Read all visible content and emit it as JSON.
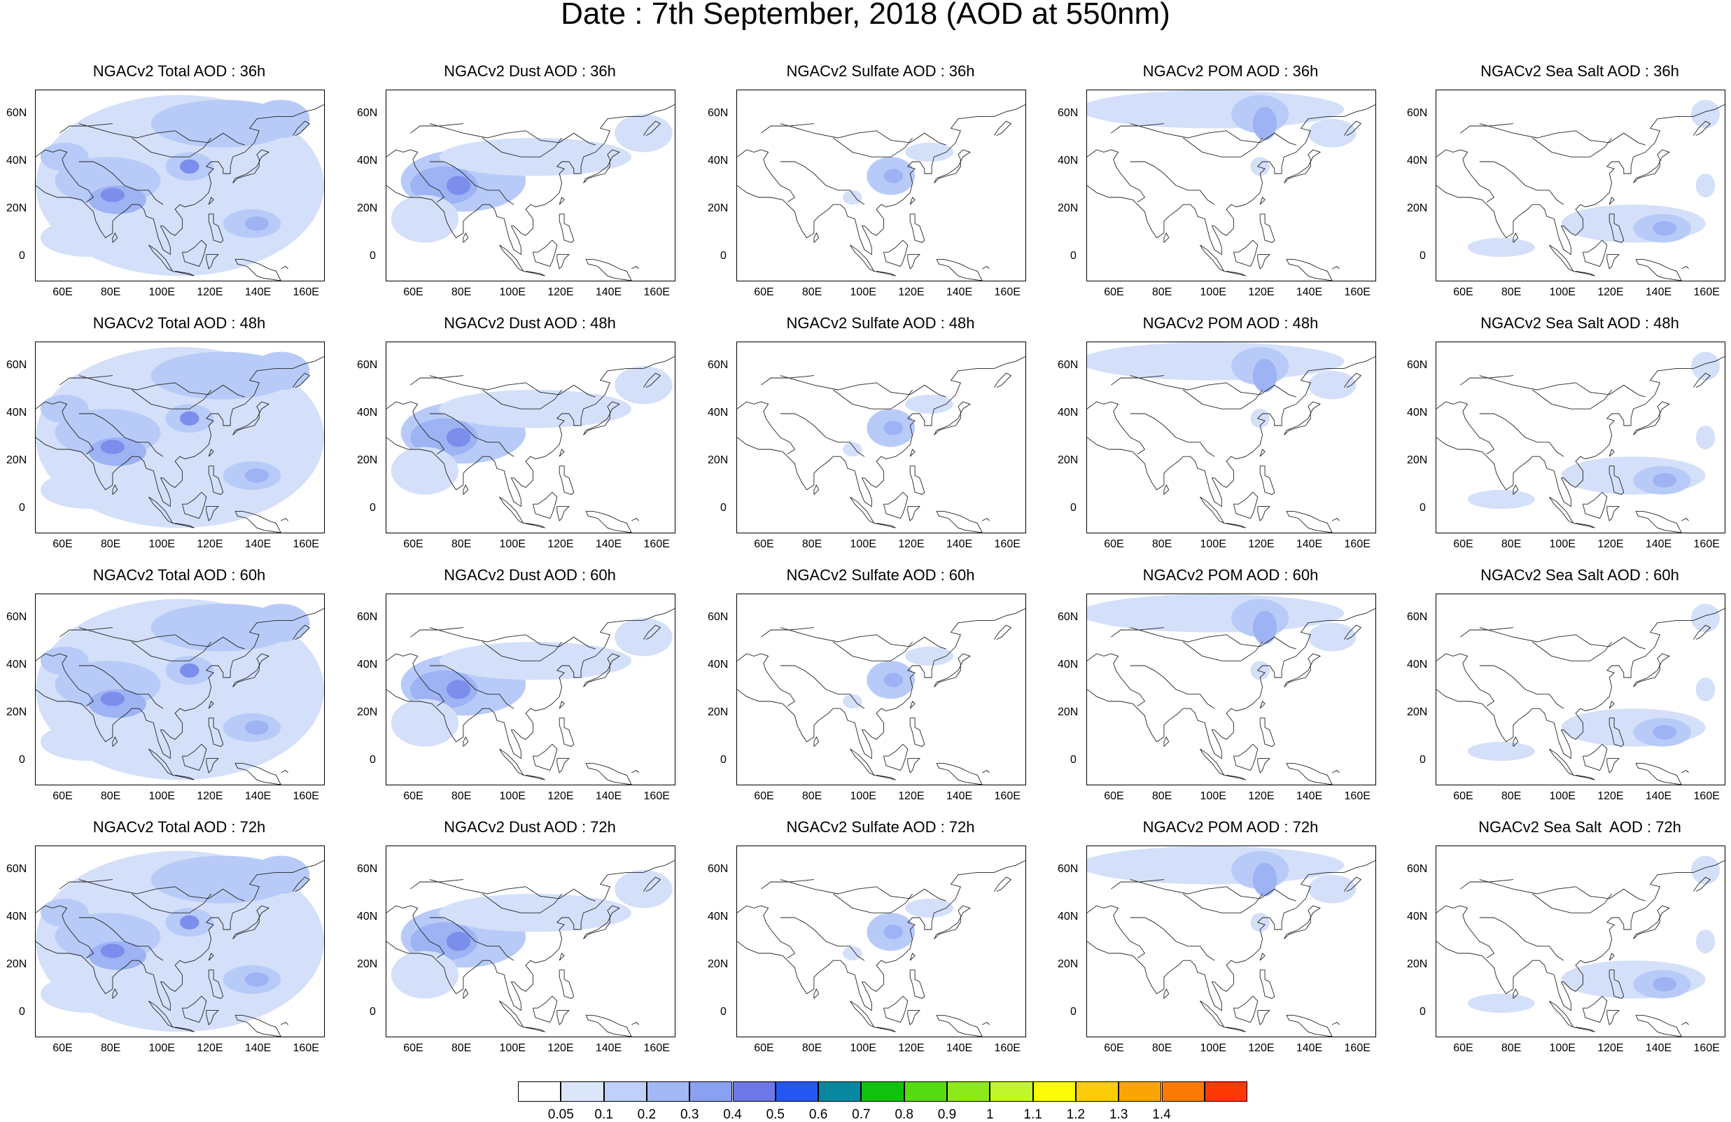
{
  "title": "Date : 7th September, 2018 (AOD at 550nm)",
  "axes": {
    "x_tick_labels": [
      "60E",
      "80E",
      "100E",
      "120E",
      "140E",
      "160E"
    ],
    "y_tick_labels": [
      "60N",
      "40N",
      "20N",
      "0"
    ],
    "lon_range": [
      48,
      168
    ],
    "lat_range": [
      -10,
      70
    ]
  },
  "panels": [
    [
      {
        "title": "NGACv2 Total AOD : 36h",
        "species": "total"
      },
      {
        "title": "NGACv2 Dust AOD : 36h",
        "species": "dust"
      },
      {
        "title": "NGACv2 Sulfate AOD : 36h",
        "species": "sulfate"
      },
      {
        "title": "NGACv2 POM AOD : 36h",
        "species": "pom"
      },
      {
        "title": "NGACv2 Sea Salt AOD : 36h",
        "species": "seasalt"
      }
    ],
    [
      {
        "title": "NGACv2 Total AOD : 48h",
        "species": "total"
      },
      {
        "title": "NGACv2 Dust AOD : 48h",
        "species": "dust"
      },
      {
        "title": "NGACv2 Sulfate AOD : 48h",
        "species": "sulfate"
      },
      {
        "title": "NGACv2 POM AOD : 48h",
        "species": "pom"
      },
      {
        "title": "NGACv2 Sea Salt AOD : 48h",
        "species": "seasalt"
      }
    ],
    [
      {
        "title": "NGACv2 Total AOD : 60h",
        "species": "total"
      },
      {
        "title": "NGACv2 Dust AOD : 60h",
        "species": "dust"
      },
      {
        "title": "NGACv2 Sulfate AOD : 60h",
        "species": "sulfate"
      },
      {
        "title": "NGACv2 POM AOD : 60h",
        "species": "pom"
      },
      {
        "title": "NGACv2 Sea Salt AOD : 60h",
        "species": "seasalt"
      }
    ],
    [
      {
        "title": "NGACv2 Total AOD : 72h",
        "species": "total"
      },
      {
        "title": "NGACv2 Dust AOD : 72h",
        "species": "dust"
      },
      {
        "title": "NGACv2 Sulfate AOD : 72h",
        "species": "sulfate"
      },
      {
        "title": "NGACv2 POM AOD : 72h",
        "species": "pom"
      },
      {
        "title": "NGACv2 Sea Salt  AOD : 72h",
        "species": "seasalt"
      }
    ]
  ],
  "colorbar": {
    "labels": [
      "0.05",
      "0.1",
      "0.2",
      "0.3",
      "0.4",
      "0.5",
      "0.6",
      "0.7",
      "0.8",
      "0.9",
      "1",
      "1.1",
      "1.2",
      "1.3",
      "1.4"
    ],
    "colors": [
      "#ffffff",
      "#dce6fb",
      "#bfd0f9",
      "#a3b9f6",
      "#8aa0f0",
      "#6d78e6",
      "#2557f0",
      "#0a87a0",
      "#11c10e",
      "#55dc13",
      "#8ee91c",
      "#c3f52e",
      "#fbfb07",
      "#fbcc07",
      "#fba406",
      "#fb7a06",
      "#fb3a05"
    ]
  },
  "field_colors": {
    "v1": "#d4e0fa",
    "v2": "#b8cbf8",
    "v3": "#9db3f3",
    "v4": "#7c8eec",
    "v5": "#6b6fe0",
    "v6": "#11c10e",
    "v7": "#8ee91c"
  }
}
